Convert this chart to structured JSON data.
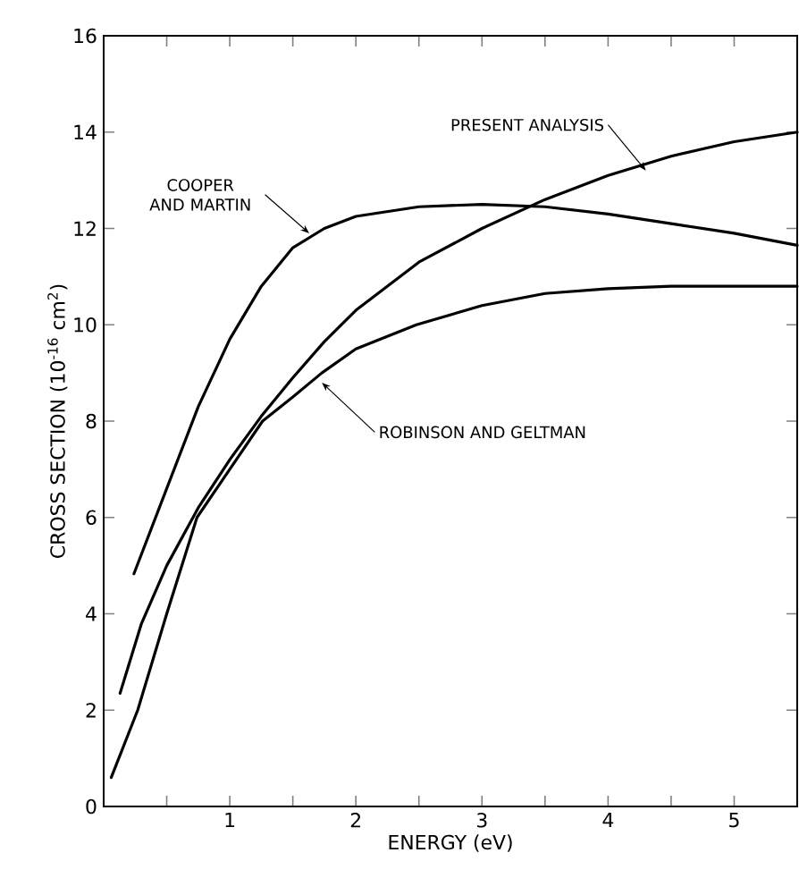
{
  "chart_data": {
    "type": "line",
    "xlabel": "ENERGY  (eV)",
    "ylabel": "CROSS SECTION  (10$^{-16}$ cm$^{2}$)",
    "xlim": [
      0,
      5.5
    ],
    "ylim": [
      0,
      16
    ],
    "xticks": [
      {
        "value": 0,
        "label": null
      },
      {
        "value": 0.5,
        "label": null
      },
      1,
      {
        "value": 1.5,
        "label": null
      },
      2,
      {
        "value": 2.5,
        "label": null
      },
      3,
      {
        "value": 3.5,
        "label": null
      },
      4,
      {
        "value": 4.5,
        "label": null
      },
      5
    ],
    "yticks": [
      0,
      2,
      4,
      6,
      8,
      10,
      12,
      14,
      16
    ],
    "grid": false,
    "marker": "none",
    "line_style": "solid",
    "series": [
      {
        "color": "#000000",
        "x": [
          0.13,
          0.3,
          0.5,
          0.75,
          1.0,
          1.25,
          1.5,
          1.75,
          2.0,
          2.5,
          3.0,
          3.5,
          4.0,
          4.5,
          5.0,
          5.5
        ],
        "values": [
          2.35,
          3.8,
          5.0,
          6.2,
          7.2,
          8.1,
          8.9,
          9.65,
          10.3,
          11.3,
          12.0,
          12.6,
          13.1,
          13.5,
          13.8,
          14.0
        ]
      },
      {
        "color": "#000000",
        "x": [
          0.24,
          0.5,
          0.75,
          1.0,
          1.25,
          1.5,
          1.75,
          2.0,
          2.5,
          3.0,
          3.5,
          4.0,
          4.5,
          5.0,
          5.5
        ],
        "values": [
          4.83,
          6.6,
          8.3,
          9.7,
          10.8,
          11.6,
          12.0,
          12.25,
          12.45,
          12.5,
          12.45,
          12.3,
          12.1,
          11.9,
          11.65
        ]
      },
      {
        "color": "#000000",
        "x": [
          0.06,
          0.27,
          0.5,
          0.74,
          1.0,
          1.26,
          1.5,
          1.73,
          2.0,
          2.48,
          3.0,
          3.5,
          4.0,
          4.5,
          5.0,
          5.5
        ],
        "values": [
          0.6,
          2.0,
          4.0,
          6.0,
          7.0,
          8.0,
          8.5,
          9.0,
          9.5,
          10.0,
          10.4,
          10.65,
          10.75,
          10.8,
          10.8,
          10.8
        ]
      }
    ],
    "annotations": [
      {
        "text": "PRESENT ANALYSIS",
        "x": 4.3,
        "y": 13.2
      },
      {
        "text": "COOPER AND MARTIN",
        "x": 1.63,
        "y": 11.9
      },
      {
        "text": "ROBINSON AND GELTMAN",
        "x": 1.73,
        "y": 8.8
      }
    ]
  }
}
